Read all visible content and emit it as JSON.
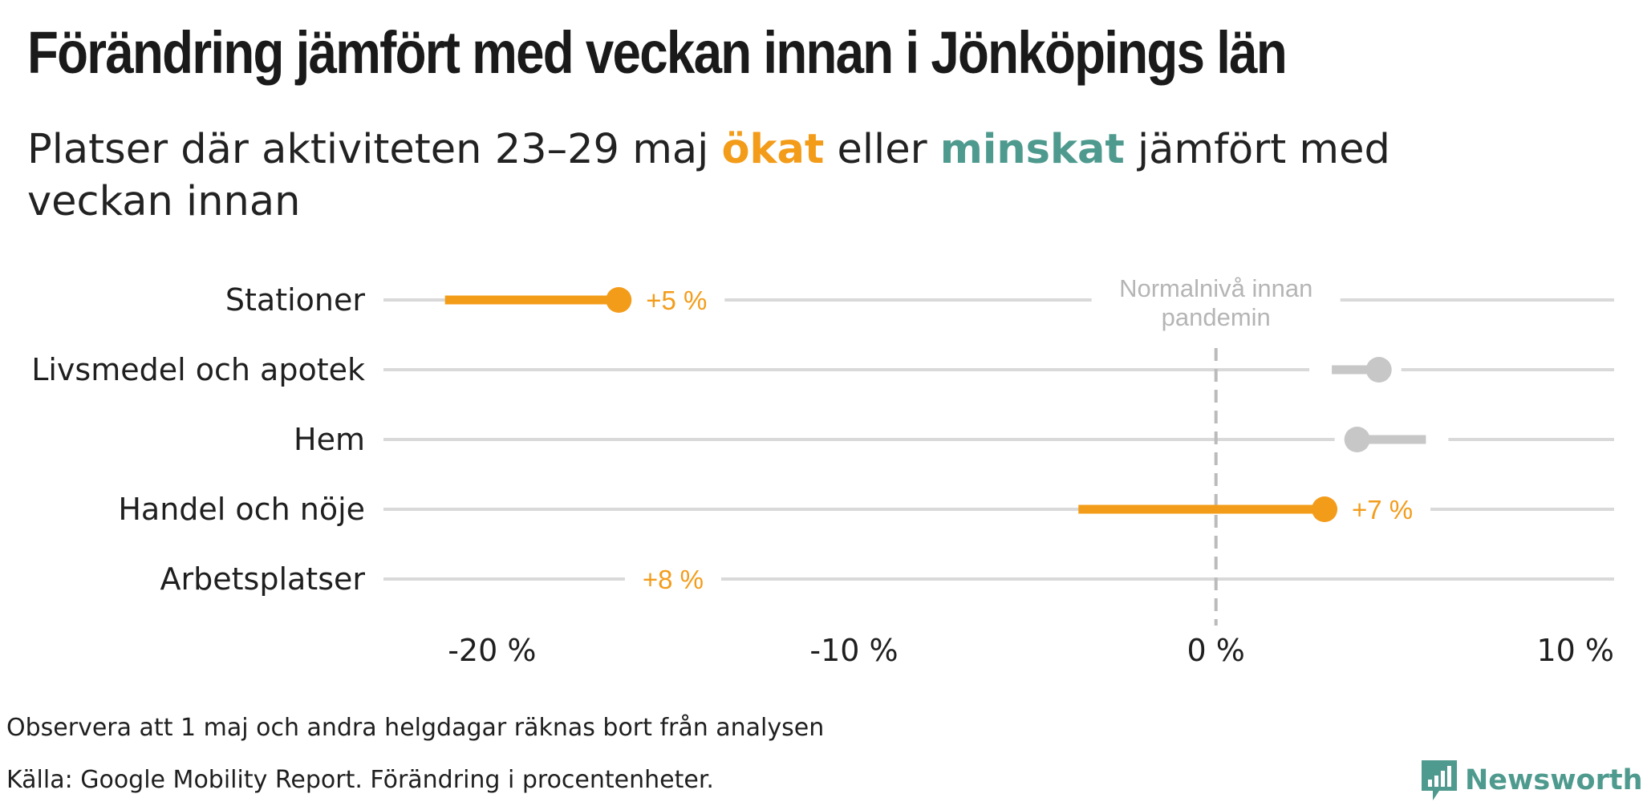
{
  "title": "Förändring jämfört med veckan innan i Jönköpings län",
  "subtitle": {
    "part1": "Platser där aktiviteten 23–29 maj ",
    "up_word": "ökat",
    "part2": " eller ",
    "down_word": "minskat",
    "part3": " jämfört med veckan innan"
  },
  "colors": {
    "increase": "#f39c1a",
    "decrease": "#4f9a8e",
    "neutral": "#c7c7c7",
    "gridline": "#d9d9d9",
    "zero_line": "#bbbbbb"
  },
  "chart_data": {
    "type": "dumbbell",
    "x_unit": "procentenheter",
    "xlim": [
      -23,
      11
    ],
    "x_ticks": [
      -20,
      -10,
      0,
      10
    ],
    "x_tick_labels": [
      "-20 %",
      "-10 %",
      "0 %",
      "10 %"
    ],
    "reference_line": {
      "x": 0,
      "label_lines": [
        "Normalnivå innan",
        "pandemin"
      ]
    },
    "categories": [
      {
        "name": "Stationer",
        "previous_week": -21.3,
        "this_week": -16.5,
        "change_label": "+5 %",
        "direction": "increase"
      },
      {
        "name": "Livsmedel och apotek",
        "previous_week": 3.2,
        "this_week": 4.5,
        "change_label": "",
        "direction": "neutral"
      },
      {
        "name": "Hem",
        "previous_week": 5.8,
        "this_week": 3.9,
        "change_label": "",
        "direction": "neutral"
      },
      {
        "name": "Handel och nöje",
        "previous_week": -3.8,
        "this_week": 3.0,
        "change_label": "+7 %",
        "direction": "increase"
      },
      {
        "name": "Arbetsplatser",
        "previous_week": null,
        "this_week": null,
        "change_label": "+8 %",
        "direction": "increase"
      }
    ]
  },
  "footer": {
    "note": "Observera att 1 maj och andra helgdagar räknas bort från analysen",
    "source": "Källa: Google Mobility Report. Förändring i procentenheter.",
    "brand": "Newsworthy",
    "brand_icon": "newsworthy-chart-bubble-icon"
  }
}
